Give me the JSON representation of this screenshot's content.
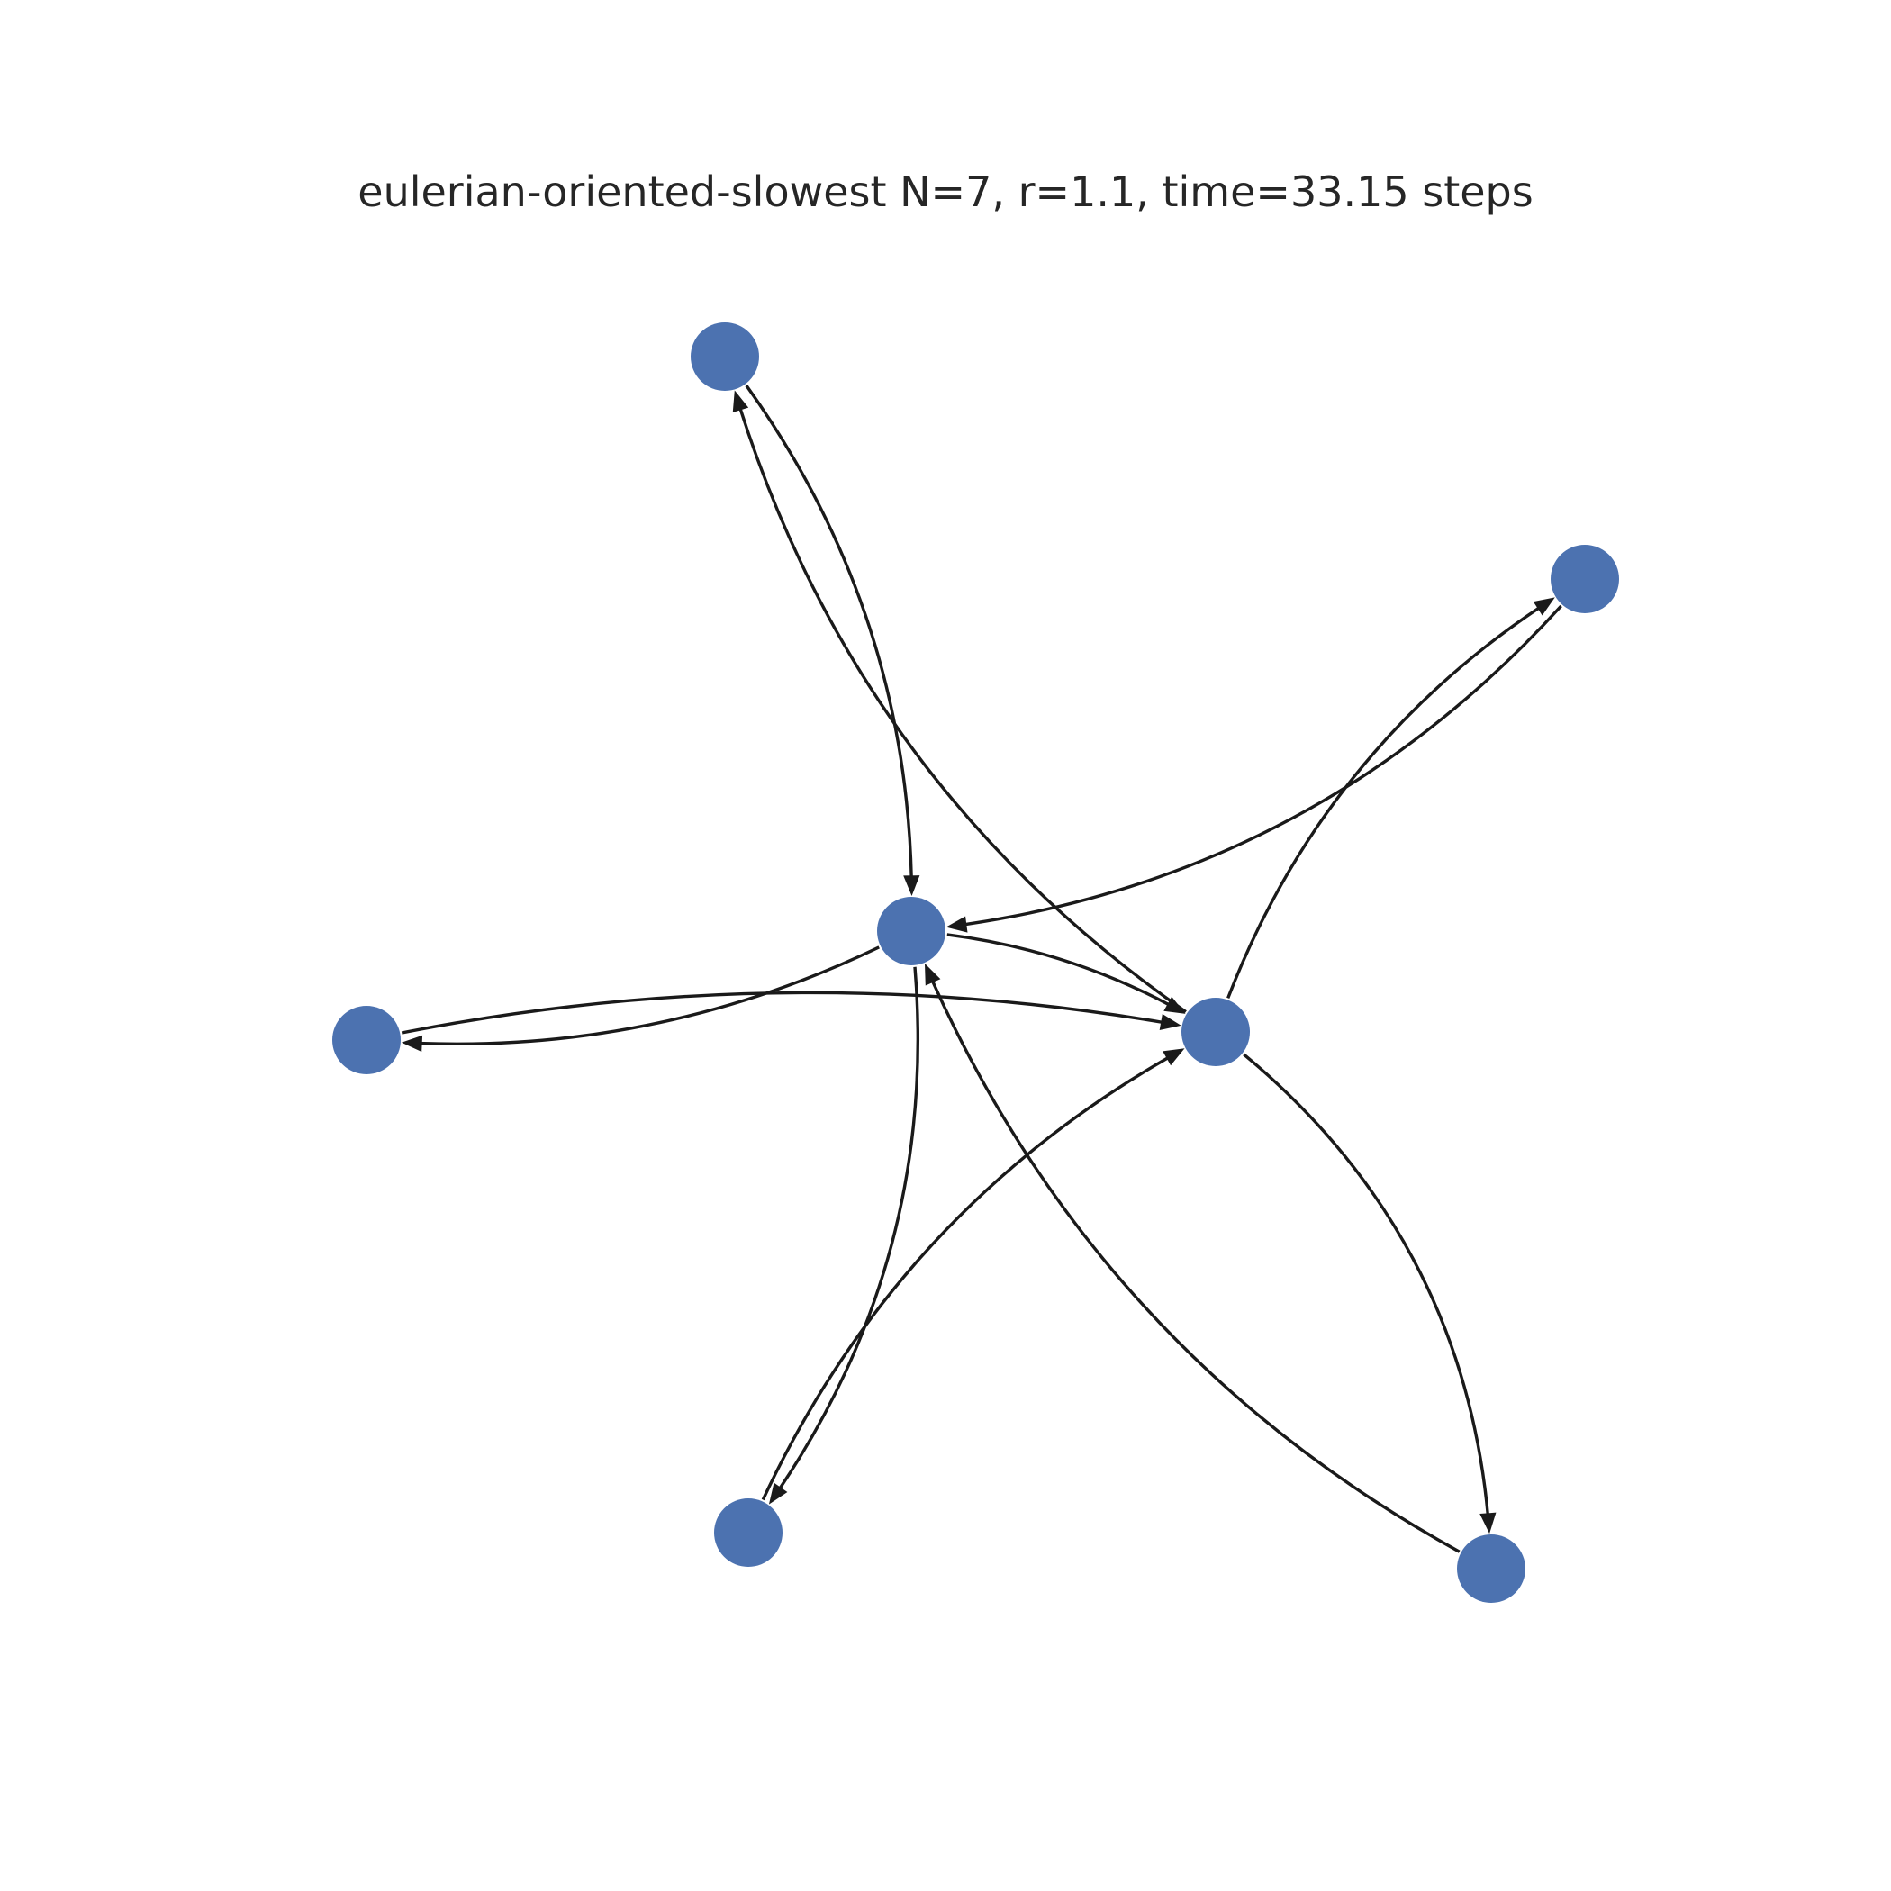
{
  "title": "eulerian-oriented-slowest N=7, r=1.1, time=33.15 steps",
  "colors": {
    "node": "#4c72b0",
    "edge": "#1a1a1a",
    "title": "#262626",
    "background": "#ffffff"
  },
  "graph": {
    "directed": true,
    "node_count": 7,
    "nodes": [
      {
        "id": "n0"
      },
      {
        "id": "n1"
      },
      {
        "id": "n2"
      },
      {
        "id": "n3"
      },
      {
        "id": "n4"
      },
      {
        "id": "n5"
      },
      {
        "id": "n6"
      }
    ],
    "edges": [
      {
        "source": "n0",
        "target": "n1"
      },
      {
        "source": "n1",
        "target": "n3"
      },
      {
        "source": "n1",
        "target": "n2"
      },
      {
        "source": "n1",
        "target": "n4"
      },
      {
        "source": "n2",
        "target": "n3"
      },
      {
        "source": "n3",
        "target": "n0"
      },
      {
        "source": "n3",
        "target": "n6"
      },
      {
        "source": "n3",
        "target": "n5"
      },
      {
        "source": "n4",
        "target": "n3"
      },
      {
        "source": "n5",
        "target": "n1"
      },
      {
        "source": "n6",
        "target": "n1"
      }
    ]
  }
}
